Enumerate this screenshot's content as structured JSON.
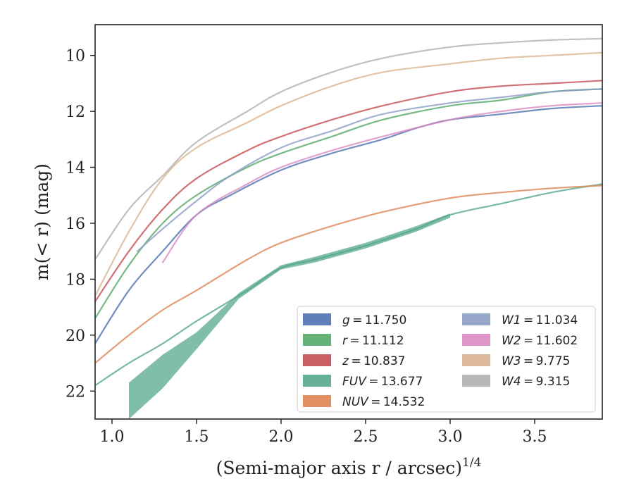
{
  "chart_data": {
    "type": "line",
    "xlabel": "(Semi-major axis r / arcsec)",
    "xlabel_sup": "1/4",
    "ylabel": "m(< r) (mag)",
    "xlim": [
      0.9,
      3.9
    ],
    "ylim": [
      23.0,
      8.9
    ],
    "y_inverted": true,
    "grid": false,
    "legend_position": "lower-right",
    "x_ticks": [
      1.0,
      1.5,
      2.0,
      2.5,
      3.0,
      3.5
    ],
    "x_tick_labels": [
      "1.0",
      "1.5",
      "2.0",
      "2.5",
      "3.0",
      "3.5"
    ],
    "y_ticks": [
      10,
      12,
      14,
      16,
      18,
      20,
      22
    ],
    "y_tick_labels": [
      "10",
      "12",
      "14",
      "16",
      "18",
      "20",
      "22"
    ],
    "series": [
      {
        "name": "g = 11.750",
        "var": "g",
        "value": "11.750",
        "color": "#4c72b0",
        "x": [
          0.9,
          1.1,
          1.3,
          1.5,
          1.7,
          2.0,
          2.3,
          2.6,
          2.8,
          3.0,
          3.3,
          3.6,
          3.9
        ],
        "y": [
          20.3,
          18.4,
          17.0,
          15.7,
          15.0,
          14.1,
          13.5,
          13.0,
          12.6,
          12.3,
          12.1,
          11.9,
          11.8
        ]
      },
      {
        "name": "r = 11.112",
        "var": "r",
        "value": "11.112",
        "color": "#55a868",
        "x": [
          0.9,
          1.1,
          1.3,
          1.5,
          1.8,
          2.0,
          2.3,
          2.6,
          3.0,
          3.3,
          3.6,
          3.9
        ],
        "y": [
          19.4,
          17.5,
          16.0,
          15.0,
          14.0,
          13.5,
          12.9,
          12.3,
          11.8,
          11.6,
          11.3,
          11.2
        ]
      },
      {
        "name": "z = 10.837",
        "var": "z",
        "value": "10.837",
        "color": "#c44e52",
        "x": [
          0.9,
          1.1,
          1.3,
          1.5,
          1.8,
          2.0,
          2.3,
          2.6,
          3.0,
          3.3,
          3.6,
          3.9
        ],
        "y": [
          18.8,
          17.0,
          15.5,
          14.4,
          13.4,
          12.9,
          12.3,
          11.8,
          11.3,
          11.1,
          11.0,
          10.9
        ]
      },
      {
        "name": "FUV = 13.677",
        "var": "FUV",
        "value": "13.677",
        "color": "#55a88a",
        "x": [
          0.9,
          1.1,
          1.3,
          1.5,
          1.8,
          2.0,
          2.2,
          2.5,
          2.8,
          3.0,
          3.3,
          3.6,
          3.9
        ],
        "y": [
          21.8,
          21.0,
          20.3,
          19.5,
          18.4,
          17.6,
          17.3,
          16.8,
          16.2,
          15.7,
          15.3,
          14.9,
          14.6
        ],
        "band_x": [
          1.1,
          1.3,
          1.5,
          1.75,
          2.0,
          2.2,
          2.5,
          2.8,
          3.0
        ],
        "band_upper": [
          21.7,
          20.7,
          19.9,
          18.5,
          17.5,
          17.2,
          16.7,
          16.1,
          15.65
        ],
        "band_lower": [
          23.0,
          21.9,
          20.5,
          18.7,
          17.65,
          17.4,
          16.9,
          16.3,
          15.8
        ]
      },
      {
        "name": "NUV = 14.532",
        "var": "NUV",
        "value": "14.532",
        "color": "#dd8452",
        "x": [
          0.9,
          1.1,
          1.3,
          1.5,
          1.8,
          2.0,
          2.3,
          2.6,
          3.0,
          3.3,
          3.6,
          3.9
        ],
        "y": [
          21.0,
          20.0,
          19.1,
          18.4,
          17.3,
          16.7,
          16.1,
          15.6,
          15.1,
          14.9,
          14.75,
          14.65
        ]
      },
      {
        "name": "W1 = 11.034",
        "var": "W1",
        "value": "11.034",
        "color": "#8c9dc4",
        "x": [
          1.15,
          1.3,
          1.5,
          1.7,
          2.0,
          2.3,
          2.6,
          3.0,
          3.3,
          3.6,
          3.9
        ],
        "y": [
          17.0,
          16.2,
          15.2,
          14.3,
          13.3,
          12.7,
          12.1,
          11.7,
          11.5,
          11.3,
          11.2
        ]
      },
      {
        "name": "W2 = 11.602",
        "var": "W2",
        "value": "11.602",
        "color": "#da8bc3",
        "x": [
          1.3,
          1.5,
          1.8,
          2.0,
          2.3,
          2.6,
          3.0,
          3.3,
          3.6,
          3.9
        ],
        "y": [
          17.4,
          15.7,
          14.6,
          14.0,
          13.4,
          12.9,
          12.3,
          12.0,
          11.8,
          11.7
        ]
      },
      {
        "name": "W3 = 9.775",
        "var": "W3",
        "value": "9.775",
        "color": "#d9b48f",
        "x": [
          0.9,
          1.1,
          1.3,
          1.5,
          1.8,
          2.0,
          2.3,
          2.6,
          3.0,
          3.3,
          3.6,
          3.9
        ],
        "y": [
          18.6,
          16.3,
          14.4,
          13.3,
          12.4,
          11.8,
          11.1,
          10.6,
          10.3,
          10.1,
          10.0,
          9.9
        ]
      },
      {
        "name": "W4 = 9.315",
        "var": "W4",
        "value": "9.315",
        "color": "#b0b0b0",
        "x": [
          0.9,
          1.1,
          1.3,
          1.5,
          1.8,
          2.0,
          2.3,
          2.6,
          3.0,
          3.3,
          3.6,
          3.9
        ],
        "y": [
          17.3,
          15.5,
          14.3,
          13.1,
          12.0,
          11.3,
          10.6,
          10.1,
          9.7,
          9.55,
          9.45,
          9.4
        ]
      }
    ]
  }
}
